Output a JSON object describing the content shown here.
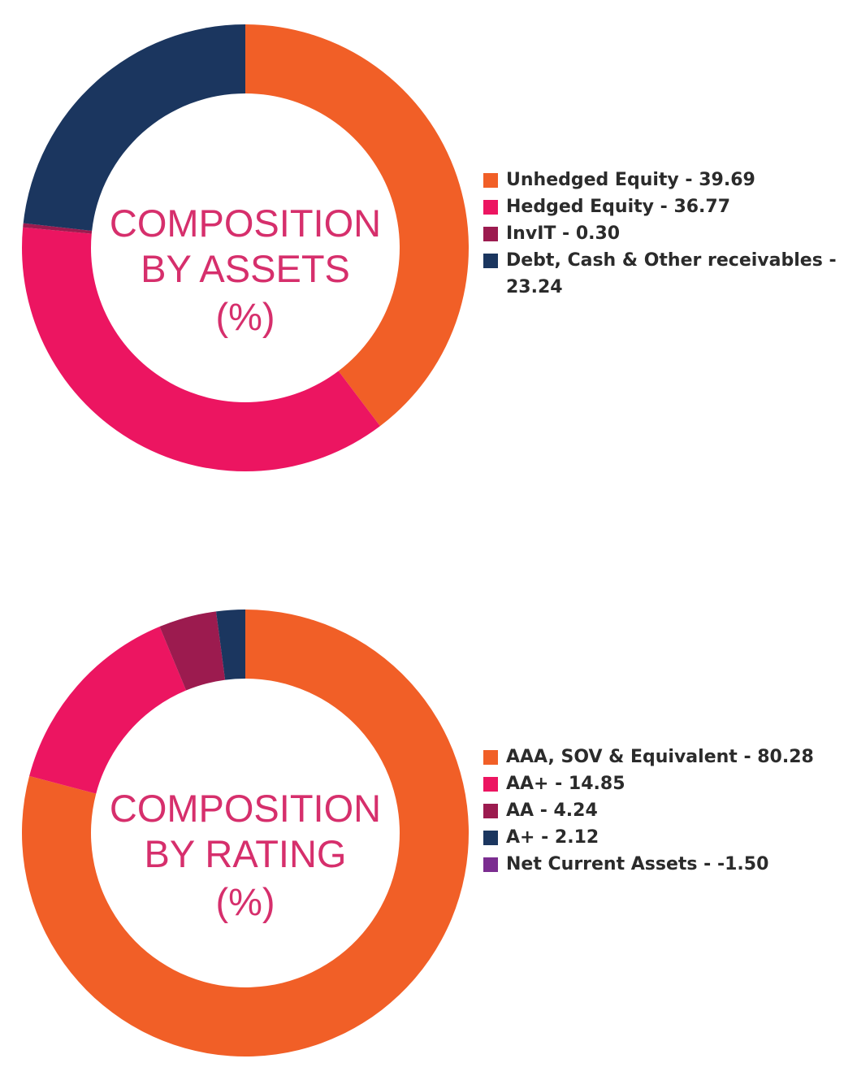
{
  "chart_data": [
    {
      "type": "pie",
      "title": "COMPOSITION BY ASSETS (%)",
      "center_label": [
        "COMPOSITION",
        "BY ASSETS",
        "(%)"
      ],
      "legend_position": "right",
      "slices": [
        {
          "label": "Unhedged Equity - 39.69",
          "name": "Unhedged Equity",
          "value": 39.69,
          "color": "#f15f27"
        },
        {
          "label": "Hedged Equity - 36.77",
          "name": "Hedged Equity",
          "value": 36.77,
          "color": "#ec1561"
        },
        {
          "label": "InvIT - 0.30",
          "name": "InvIT",
          "value": 0.3,
          "color": "#9c1b4f"
        },
        {
          "label": "Debt, Cash & Other receivables - 23.24",
          "name": "Debt, Cash & Other receivables",
          "value": 23.24,
          "color": "#1b365f"
        }
      ]
    },
    {
      "type": "pie",
      "title": "COMPOSITION BY RATING (%)",
      "center_label": [
        "COMPOSITION",
        "BY RATING",
        "(%)"
      ],
      "legend_position": "right",
      "slices": [
        {
          "label": "AAA, SOV & Equivalent - 80.28",
          "name": "AAA, SOV & Equivalent",
          "value": 80.28,
          "color": "#f15f27"
        },
        {
          "label": "AA+ - 14.85",
          "name": "AA+",
          "value": 14.85,
          "color": "#ec1561"
        },
        {
          "label": "AA - 4.24",
          "name": "AA",
          "value": 4.24,
          "color": "#9c1b4f"
        },
        {
          "label": "A+ - 2.12",
          "name": "A+",
          "value": 2.12,
          "color": "#1b365f"
        },
        {
          "label": "Net Current Assets - -1.50",
          "name": "Net Current Assets",
          "value": -1.5,
          "color": "#7b2d90"
        }
      ]
    }
  ],
  "colors": {
    "center_text": "#d62f6c",
    "legend_text": "#2b2b2b"
  }
}
